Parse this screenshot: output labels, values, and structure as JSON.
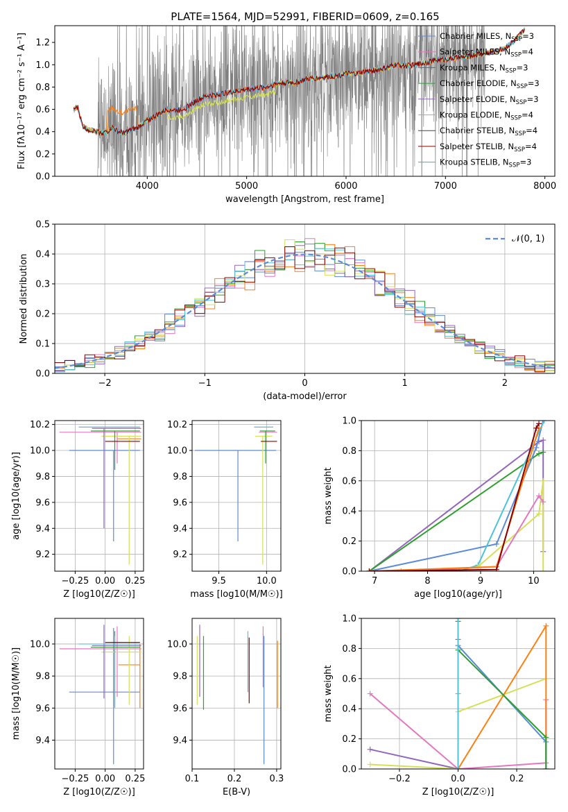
{
  "figure": {
    "title": "PLATE=1564, MJD=52991, FIBERID=0609, z=0.165"
  },
  "chart_data": [
    {
      "id": "spectrum",
      "type": "line",
      "title": "PLATE=1564, MJD=52991, FIBERID=0609, z=0.165",
      "xlabel": "wavelength [Angstrom, rest frame]",
      "ylabel": "Flux [f_λ 10^-17 erg cm^-2 s^-1 A^-1]",
      "xlim": [
        3070,
        8100
      ],
      "ylim": [
        0,
        1.35
      ],
      "xticks": [
        4000,
        5000,
        6000,
        7000,
        8000
      ],
      "yticks": [
        0.0,
        0.2,
        0.4,
        0.6,
        0.8,
        1.0,
        1.2
      ],
      "grid": false,
      "legend_position": "top-right",
      "legend": [
        {
          "label": "Chabrier MILES, N_SSP=3",
          "color": "#5b8bd9"
        },
        {
          "label": "Salpeter MILES, N_SSP=4",
          "color": "#e377c2"
        },
        {
          "label": "Kroupa MILES, N_SSP=3",
          "color": "#1f77b4"
        },
        {
          "label": "Chabrier ELODIE, N_SSP=3",
          "color": "#2ca02c"
        },
        {
          "label": "Salpeter ELODIE, N_SSP=3",
          "color": "#9467bd"
        },
        {
          "label": "Kroupa ELODIE, N_SSP=4",
          "color": "#bcbd22"
        },
        {
          "label": "Chabrier STELIB, N_SSP=4",
          "color": "#444444"
        },
        {
          "label": "Salpeter STELIB, N_SSP=4",
          "color": "#8b0000"
        },
        {
          "label": "Kroupa STELIB, N_SSP=3",
          "color": "#17becf"
        }
      ],
      "series_colors": {
        "data": "#808080",
        "models": [
          "#5b8bd9",
          "#e377c2",
          "#ff7f0e",
          "#d4e157",
          "#4cc3d9",
          "#8b0000"
        ]
      },
      "continuum": {
        "x": [
          3260,
          3300,
          3350,
          3400,
          3450,
          3500,
          3550,
          3600,
          3650,
          3700,
          3750,
          3800,
          3850,
          3900,
          3950,
          4000,
          4100,
          4200,
          4300,
          4400,
          4500,
          4600,
          4700,
          4800,
          4900,
          5000,
          5100,
          5200,
          5300,
          5400,
          5500,
          5600,
          5700,
          5800,
          5900,
          6000,
          6100,
          6200,
          6300,
          6400,
          6500,
          6600,
          6700,
          6800,
          6900,
          7000,
          7100,
          7200,
          7300,
          7400,
          7500,
          7600,
          7700,
          7800
        ],
        "y": [
          0.6,
          0.62,
          0.45,
          0.42,
          0.41,
          0.4,
          0.39,
          0.4,
          0.44,
          0.4,
          0.39,
          0.4,
          0.42,
          0.43,
          0.47,
          0.5,
          0.55,
          0.6,
          0.59,
          0.62,
          0.68,
          0.72,
          0.73,
          0.75,
          0.76,
          0.78,
          0.79,
          0.8,
          0.83,
          0.84,
          0.84,
          0.87,
          0.88,
          0.89,
          0.9,
          0.92,
          0.92,
          0.94,
          0.95,
          0.97,
          1.0,
          0.99,
          1.0,
          1.02,
          1.04,
          1.05,
          1.06,
          1.07,
          1.09,
          1.1,
          1.12,
          1.15,
          1.22,
          1.32
        ]
      },
      "data_range": [
        3500,
        7400
      ]
    },
    {
      "id": "residuals",
      "type": "histogram",
      "xlabel": "(data-model)/error",
      "ylabel": "Normed distribution",
      "xlim": [
        -2.5,
        2.5
      ],
      "ylim": [
        0,
        0.5
      ],
      "xticks": [
        -2,
        -1,
        0,
        1,
        2
      ],
      "yticks": [
        0.0,
        0.1,
        0.2,
        0.3,
        0.4,
        0.5
      ],
      "grid": true,
      "legend_position": "top-right",
      "legend": [
        {
          "label": "𝒩(0, 1)",
          "color": "#5b8bd9",
          "style": "dashed"
        }
      ],
      "bin_width": 0.1,
      "bins_start": -2.5,
      "series_colors": [
        "#5b8bd9",
        "#e377c2",
        "#ff7f0e",
        "#2ca02c",
        "#9467bd",
        "#d4e157",
        "#4cc3d9",
        "#8b0000"
      ]
    },
    {
      "id": "age-vs-Z",
      "type": "scatter",
      "xlabel": "Z [log10(Z/Z☉)]",
      "ylabel": "age [log10(age/yr)]",
      "xlim": [
        -0.42,
        0.32
      ],
      "ylim": [
        9.07,
        10.23
      ],
      "xticks": [
        -0.25,
        0.0,
        0.25
      ],
      "xtick_labels": [
        "−0.25",
        "0.00",
        "0.25"
      ],
      "yticks": [
        9.2,
        9.4,
        9.6,
        9.8,
        10.0,
        10.2
      ],
      "grid": true,
      "points": [
        {
          "x": 0.07,
          "y": 10.0,
          "xerr": [
            0.37,
            0.22
          ],
          "yerr": [
            0.7,
            0.0
          ],
          "color": "#5b8bd9"
        },
        {
          "x": 0.1,
          "y": 10.14,
          "xerr": [
            0.48,
            0.2
          ],
          "yerr": [
            0.24,
            0.0
          ],
          "color": "#e377c2"
        },
        {
          "x": 0.2,
          "y": 10.09,
          "xerr": [
            0.1,
            0.1
          ],
          "yerr": [
            0.0,
            0.0
          ],
          "color": "#ff7f0e"
        },
        {
          "x": 0.2,
          "y": 10.11,
          "xerr": [
            0.23,
            0.1
          ],
          "yerr": [
            0.99,
            0.0
          ],
          "color": "#d4e157"
        },
        {
          "x": 0.08,
          "y": 10.15,
          "xerr": [
            0.2,
            0.21
          ],
          "yerr": [
            0.3,
            0.0
          ],
          "color": "#2ca02c"
        },
        {
          "x": -0.01,
          "y": 10.17,
          "xerr": [
            0.1,
            0.31
          ],
          "yerr": [
            0.77,
            0.0
          ],
          "color": "#9467bd"
        },
        {
          "x": 0.08,
          "y": 10.18,
          "xerr": [
            0.3,
            0.21
          ],
          "yerr": [
            0.0,
            0.0
          ],
          "color": "#4cc3d9"
        },
        {
          "x": 0.09,
          "y": 10.07,
          "xerr": [
            0.09,
            0.2
          ],
          "yerr": [
            0.0,
            0.0
          ],
          "color": "#8b0000"
        }
      ]
    },
    {
      "id": "age-vs-mass",
      "type": "scatter",
      "xlabel": "mass [log10(M/M☉)]",
      "ylabel": "",
      "xlim": [
        9.22,
        10.15
      ],
      "ylim": [
        9.07,
        10.23
      ],
      "xticks": [
        9.5,
        10.0
      ],
      "yticks": [
        9.2,
        9.4,
        9.6,
        9.8,
        10.0,
        10.2
      ],
      "grid": true,
      "points": [
        {
          "x": 9.7,
          "y": 10.0,
          "xerr": [
            0.45,
            0.4
          ],
          "yerr": [
            0.7,
            0.0
          ],
          "color": "#5b8bd9"
        },
        {
          "x": 9.97,
          "y": 10.14,
          "xerr": [
            0.05,
            0.14
          ],
          "yerr": [
            0.0,
            0.0
          ],
          "color": "#e377c2"
        },
        {
          "x": 9.96,
          "y": 10.11,
          "xerr": [
            0.08,
            0.1
          ],
          "yerr": [
            0.99,
            0.0
          ],
          "color": "#d4e157"
        },
        {
          "x": 9.99,
          "y": 10.15,
          "xerr": [
            0.06,
            0.1
          ],
          "yerr": [
            0.25,
            0.0
          ],
          "color": "#2ca02c"
        },
        {
          "x": 10.02,
          "y": 10.18,
          "xerr": [
            0.15,
            0.05
          ],
          "yerr": [
            0.0,
            0.0
          ],
          "color": "#4cc3d9"
        },
        {
          "x": 10.01,
          "y": 10.07,
          "xerr": [
            0.07,
            0.1
          ],
          "yerr": [
            0.0,
            0.0
          ],
          "color": "#8b0000"
        }
      ]
    },
    {
      "id": "cumulative-age",
      "type": "line",
      "xlabel": "age [log10(age/yr)]",
      "ylabel": "mass weight",
      "xlim": [
        6.75,
        10.4
      ],
      "ylim": [
        0,
        1
      ],
      "xticks": [
        7,
        8,
        9,
        10
      ],
      "yticks": [
        0.0,
        0.2,
        0.4,
        0.6,
        0.8,
        1.0
      ],
      "grid": true,
      "series": [
        {
          "color": "#9467bd",
          "x": [
            6.9,
            10.1,
            10.18,
            10.18
          ],
          "y": [
            0.0,
            0.86,
            0.87,
            0.13
          ]
        },
        {
          "color": "#2ca02c",
          "x": [
            6.9,
            10.1,
            10.18
          ],
          "y": [
            0.0,
            0.78,
            0.79
          ]
        },
        {
          "color": "#5b8bd9",
          "x": [
            6.9,
            9.3,
            10.05,
            10.18
          ],
          "y": [
            0.0,
            0.18,
            0.82,
            1.0
          ]
        },
        {
          "color": "#4cc3d9",
          "x": [
            8.6,
            8.95,
            10.2
          ],
          "y": [
            0.0,
            0.04,
            1.0
          ]
        },
        {
          "color": "#d4e157",
          "x": [
            8.95,
            10.1,
            10.18,
            10.18
          ],
          "y": [
            0.03,
            0.38,
            0.6,
            0.0
          ]
        },
        {
          "color": "#e377c2",
          "x": [
            7.5,
            9.3,
            10.1,
            10.18
          ],
          "y": [
            0.0,
            0.03,
            0.5,
            0.46
          ]
        },
        {
          "color": "#ff7f0e",
          "x": [
            6.9,
            9.3,
            10.1
          ],
          "y": [
            0.0,
            0.03,
            0.95
          ]
        },
        {
          "color": "#8b0000",
          "x": [
            6.9,
            9.3,
            10.05,
            10.1
          ],
          "y": [
            0.0,
            0.01,
            0.95,
            0.98
          ]
        }
      ]
    },
    {
      "id": "mass-vs-Z",
      "type": "scatter",
      "xlabel": "Z [log10(Z/Z☉)]",
      "ylabel": "mass [log10(M/M☉)]",
      "xlim": [
        -0.42,
        0.32
      ],
      "ylim": [
        9.22,
        10.16
      ],
      "xticks": [
        -0.25,
        0.0,
        0.25
      ],
      "xtick_labels": [
        "−0.25",
        "0.00",
        "0.25"
      ],
      "yticks": [
        9.4,
        9.6,
        9.8,
        10.0
      ],
      "grid": true,
      "points": [
        {
          "x": 0.07,
          "y": 9.7,
          "xerr": [
            0.37,
            0.22
          ],
          "yerr": [
            0.45,
            0.4
          ],
          "color": "#5b8bd9"
        },
        {
          "x": 0.1,
          "y": 9.97,
          "xerr": [
            0.48,
            0.2
          ],
          "yerr": [
            0.3,
            0.14
          ],
          "color": "#e377c2"
        },
        {
          "x": 0.29,
          "y": 9.87,
          "xerr": [
            0.18,
            0.0
          ],
          "yerr": [
            0.27,
            0.13
          ],
          "color": "#ff7f0e"
        },
        {
          "x": 0.2,
          "y": 9.95,
          "xerr": [
            0.23,
            0.1
          ],
          "yerr": [
            0.33,
            0.1
          ],
          "color": "#d4e157"
        },
        {
          "x": 0.08,
          "y": 9.98,
          "xerr": [
            0.2,
            0.21
          ],
          "yerr": [
            0.37,
            0.1
          ],
          "color": "#2ca02c"
        },
        {
          "x": -0.01,
          "y": 9.99,
          "xerr": [
            0.1,
            0.31
          ],
          "yerr": [
            0.33,
            0.13
          ],
          "color": "#9467bd"
        },
        {
          "x": 0.08,
          "y": 10.0,
          "xerr": [
            0.3,
            0.21
          ],
          "yerr": [
            0.4,
            0.05
          ],
          "color": "#4cc3d9"
        },
        {
          "x": 0.09,
          "y": 10.01,
          "xerr": [
            0.09,
            0.2
          ],
          "yerr": [
            0.0,
            0.0
          ],
          "color": "#8b0000"
        }
      ]
    },
    {
      "id": "mass-vs-EBV",
      "type": "scatter",
      "xlabel": "E(B-V)",
      "ylabel": "",
      "xlim": [
        0.1,
        0.31
      ],
      "ylim": [
        9.22,
        10.16
      ],
      "xticks": [
        0.1,
        0.2,
        0.3
      ],
      "yticks": [
        9.4,
        9.6,
        9.8,
        10.0
      ],
      "grid": true,
      "bars": [
        {
          "x": 0.112,
          "y0": 9.62,
          "y1": 10.05,
          "color": "#d4e157"
        },
        {
          "x": 0.118,
          "y0": 9.67,
          "y1": 10.12,
          "color": "#9467bd"
        },
        {
          "x": 0.127,
          "y0": 9.59,
          "y1": 10.05,
          "color": "#2ca02c"
        },
        {
          "x": 0.232,
          "y0": 9.7,
          "y1": 10.08,
          "color": "#4cc3d9"
        },
        {
          "x": 0.235,
          "y0": 9.63,
          "y1": 10.04,
          "color": "#8b0000"
        },
        {
          "x": 0.268,
          "y0": 9.73,
          "y1": 10.11,
          "color": "#e377c2"
        },
        {
          "x": 0.27,
          "y0": 9.25,
          "y1": 10.05,
          "color": "#5b8bd9"
        },
        {
          "x": 0.302,
          "y0": 9.6,
          "y1": 10.02,
          "color": "#ff7f0e"
        }
      ]
    },
    {
      "id": "cumulative-Z",
      "type": "line",
      "xlabel": "Z [log10(Z/Z☉)]",
      "ylabel": "mass weight",
      "xlim": [
        -0.33,
        0.33
      ],
      "ylim": [
        0,
        1
      ],
      "xticks": [
        -0.2,
        0.0,
        0.2
      ],
      "xtick_labels": [
        "−0.2",
        "0.0",
        "0.2"
      ],
      "yticks": [
        0.0,
        0.2,
        0.4,
        0.6,
        0.8,
        1.0
      ],
      "grid": true,
      "series": [
        {
          "color": "#e377c2",
          "x": [
            -0.3,
            0.0,
            0.3,
            0.3
          ],
          "y": [
            0.5,
            0.0,
            0.04,
            0.46
          ]
        },
        {
          "color": "#9467bd",
          "x": [
            -0.3,
            0.0,
            0.0
          ],
          "y": [
            0.13,
            0.0,
            0.86
          ]
        },
        {
          "color": "#d4e157",
          "x": [
            -0.3,
            0.0,
            0.0,
            0.3
          ],
          "y": [
            0.03,
            0.0,
            0.38,
            0.6
          ]
        },
        {
          "color": "#ff7f0e",
          "x": [
            0.0,
            0.3,
            0.3
          ],
          "y": [
            0.0,
            0.95,
            0.0
          ]
        },
        {
          "color": "#5b8bd9",
          "x": [
            0.0,
            0.0,
            0.3,
            0.3
          ],
          "y": [
            1.0,
            0.82,
            0.18,
            0.0
          ]
        },
        {
          "color": "#2ca02c",
          "x": [
            0.0,
            0.0,
            0.3,
            0.3
          ],
          "y": [
            0.98,
            0.79,
            0.21,
            0.0
          ]
        },
        {
          "color": "#4cc3d9",
          "x": [
            0.0,
            0.0,
            0.0
          ],
          "y": [
            0.0,
            0.5,
            1.0
          ]
        }
      ]
    }
  ]
}
